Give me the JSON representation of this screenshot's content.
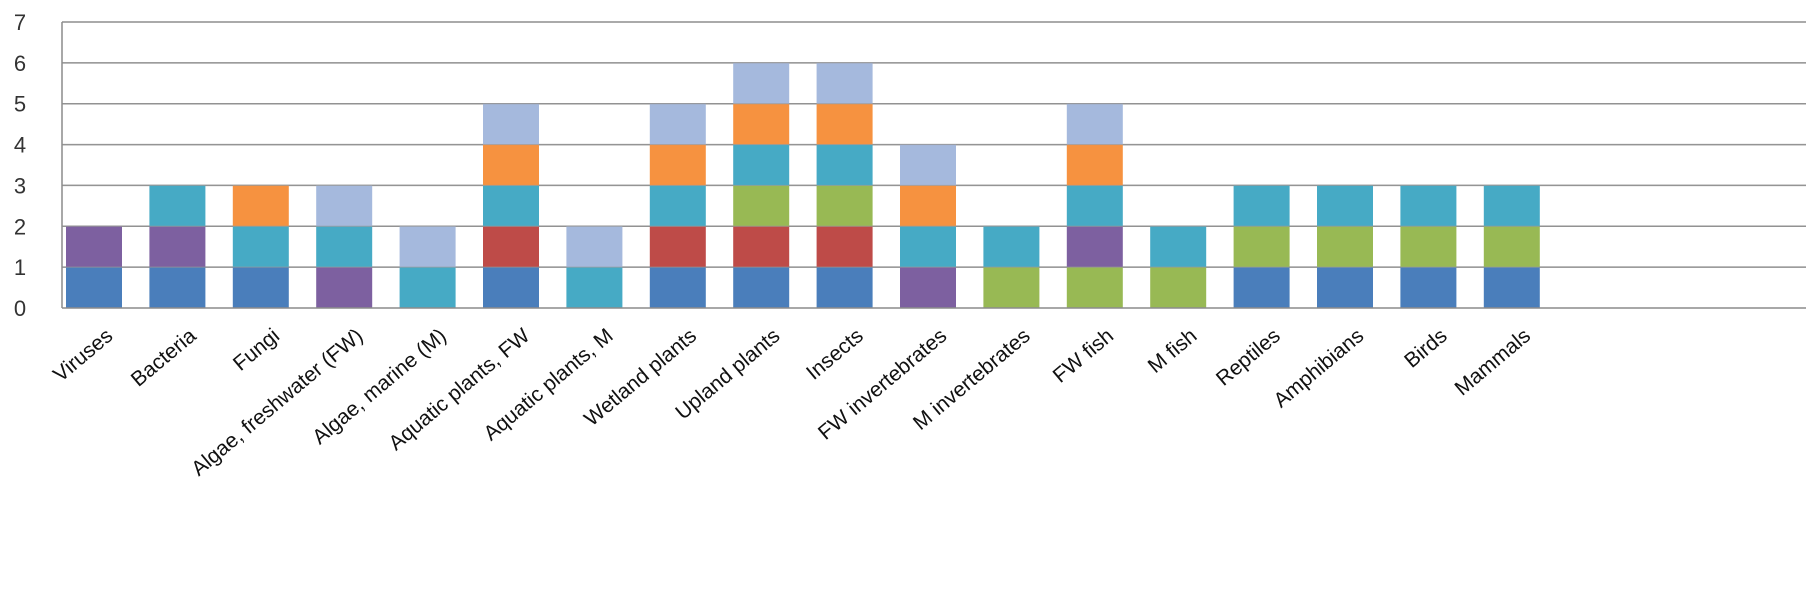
{
  "chart_data": {
    "type": "bar",
    "stacked": true,
    "title": "",
    "xlabel": "",
    "ylabel": "",
    "ylim": [
      0,
      7
    ],
    "yticks": [
      0,
      1,
      2,
      3,
      4,
      5,
      6,
      7
    ],
    "grid": true,
    "legend": "none",
    "categories": [
      "Viruses",
      "Bacteria",
      "Fungi",
      "Algae, freshwater (FW)",
      "Algae, marine (M)",
      "Aquatic plants, FW",
      "Aquatic plants, M",
      "Wetland plants",
      "Upland plants",
      "Insects",
      "FW invertebrates",
      "M invertebrates",
      "FW fish",
      "M fish",
      "Reptiles",
      "Amphibians",
      "Birds",
      "Mammals"
    ],
    "series": [
      {
        "color": "#4a7ebb",
        "values": [
          1,
          1,
          1,
          0,
          0,
          1,
          0,
          1,
          1,
          1,
          0,
          0,
          0,
          0,
          1,
          1,
          1,
          1
        ]
      },
      {
        "color": "#be4b48",
        "values": [
          0,
          0,
          0,
          0,
          0,
          1,
          0,
          1,
          1,
          1,
          0,
          0,
          0,
          0,
          0,
          0,
          0,
          0
        ]
      },
      {
        "color": "#98b954",
        "values": [
          0,
          0,
          0,
          0,
          0,
          0,
          0,
          0,
          1,
          1,
          0,
          1,
          1,
          1,
          1,
          1,
          1,
          1
        ]
      },
      {
        "color": "#7d60a0",
        "values": [
          1,
          1,
          0,
          1,
          0,
          0,
          0,
          0,
          0,
          0,
          1,
          0,
          1,
          0,
          0,
          0,
          0,
          0
        ]
      },
      {
        "color": "#46aac5",
        "values": [
          0,
          1,
          1,
          1,
          1,
          1,
          1,
          1,
          1,
          1,
          1,
          1,
          1,
          1,
          1,
          1,
          1,
          1
        ]
      },
      {
        "color": "#f69240",
        "values": [
          0,
          0,
          1,
          0,
          0,
          1,
          0,
          1,
          1,
          1,
          1,
          0,
          1,
          0,
          0,
          0,
          0,
          0
        ]
      },
      {
        "color": "#a5b9dd",
        "values": [
          0,
          0,
          0,
          1,
          1,
          1,
          1,
          1,
          1,
          1,
          1,
          0,
          1,
          0,
          0,
          0,
          0,
          0
        ]
      }
    ]
  }
}
